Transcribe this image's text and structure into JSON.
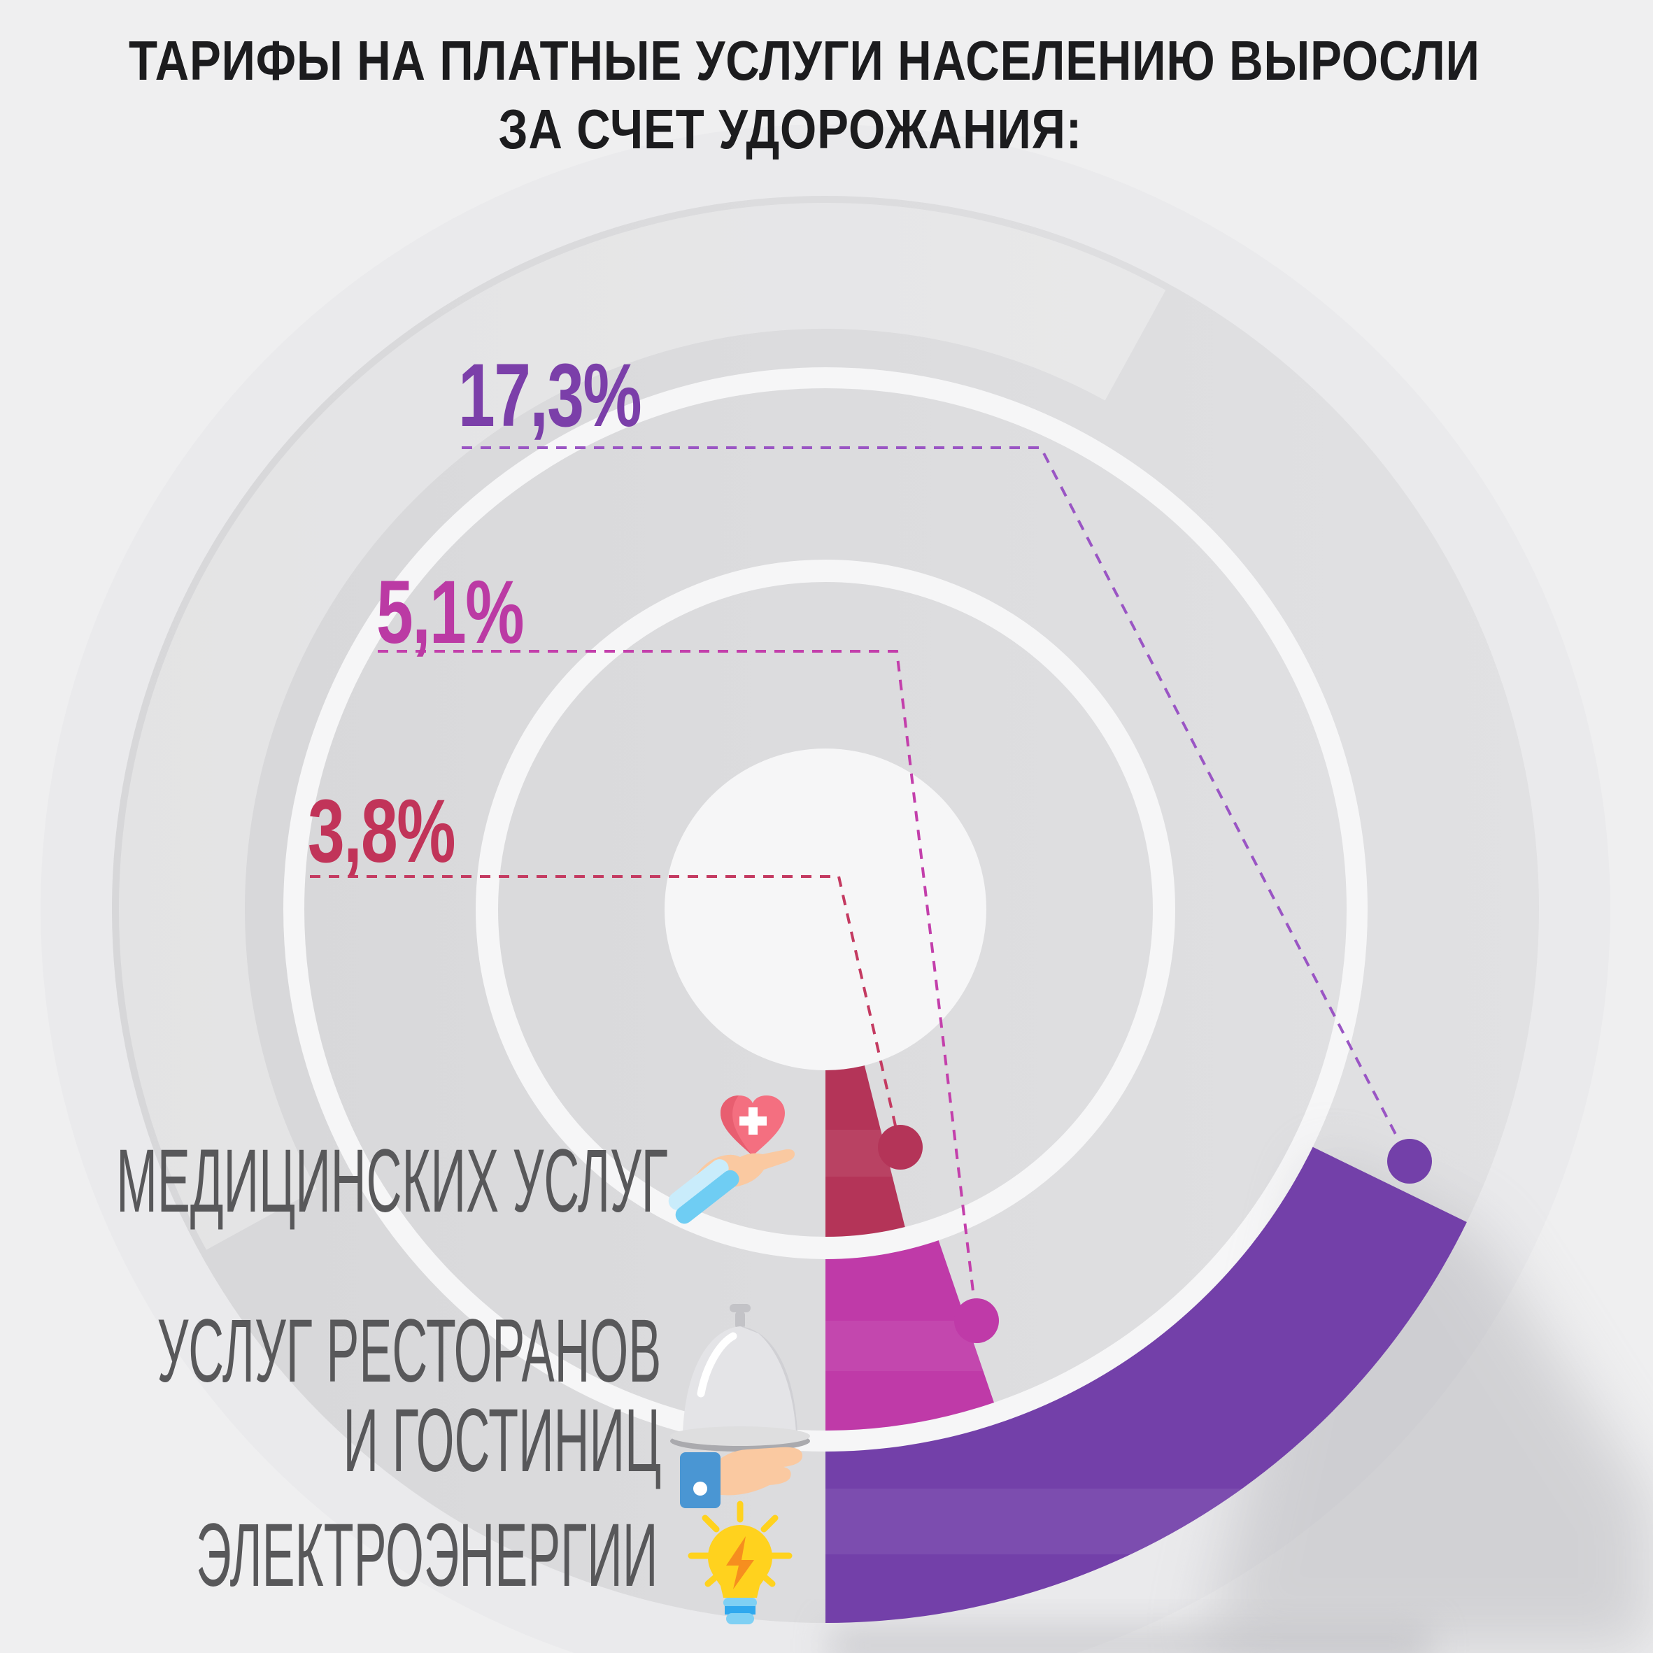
{
  "title": {
    "line1": "ТАРИФЫ НА ПЛАТНЫЕ УСЛУГИ НАСЕЛЕНИЮ ВЫРОСЛИ",
    "line2": "ЗА СЧЕТ УДОРОЖАНИЯ:"
  },
  "chart_data": {
    "type": "radial-bar",
    "title": "ТАРИФЫ НА ПЛАТНЫЕ УСЛУГИ НАСЕЛЕНИЮ ВЫРОСЛИ ЗА СЧЕТ УДОРОЖАНИЯ:",
    "unit": "%",
    "layout_hint": "three concentric ring bars, all starting at 6 o'clock and sweeping counterclockwise toward the upper right; value labels with dashed leader lines and dots",
    "categories": [
      "МЕДИЦИНСКИХ УСЛУГ",
      "УСЛУГ РЕСТОРАНОВ И ГОСТИНИЦ",
      "ЭЛЕКТРОЭНЕРГИИ"
    ],
    "values": [
      3.8,
      5.1,
      17.3
    ],
    "items": [
      {
        "label": "МЕДИЦИНСКИХ УСЛУГ",
        "label_lines": [
          "МЕДИЦИНСКИХ УСЛУГ"
        ],
        "value": 3.8,
        "value_label": "3,8%",
        "ring": "inner",
        "arc_color": "#b43458",
        "text_color": "#c13459",
        "leader_color": "#c43a61",
        "icon": "heart-in-hand-icon"
      },
      {
        "label": "УСЛУГ РЕСТОРАНОВ И ГОСТИНИЦ",
        "label_lines": [
          "УСЛУГ РЕСТОРАНОВ",
          "И ГОСТИНИЦ"
        ],
        "value": 5.1,
        "value_label": "5,1%",
        "ring": "middle",
        "arc_color": "#bf3aa8",
        "text_color": "#bb3aa4",
        "leader_color": "#c33fab",
        "icon": "cloche-in-hand-icon"
      },
      {
        "label": "ЭЛЕКТРОЭНЕРГИИ",
        "label_lines": [
          "ЭЛЕКТРОЭНЕРГИИ"
        ],
        "value": 17.3,
        "value_label": "17,3%",
        "ring": "outer",
        "arc_color": "#7340a9",
        "text_color": "#7b3fa9",
        "leader_color": "#9a55c4",
        "icon": "lightbulb-icon"
      }
    ]
  },
  "palette": {
    "background": "#efeff0",
    "ring_gray": "#dcdcde",
    "ring_gray_light": "#eaeaec",
    "separator_white": "#f6f6f7",
    "title_color": "#1c1c1e",
    "category_color": "#58585a"
  }
}
